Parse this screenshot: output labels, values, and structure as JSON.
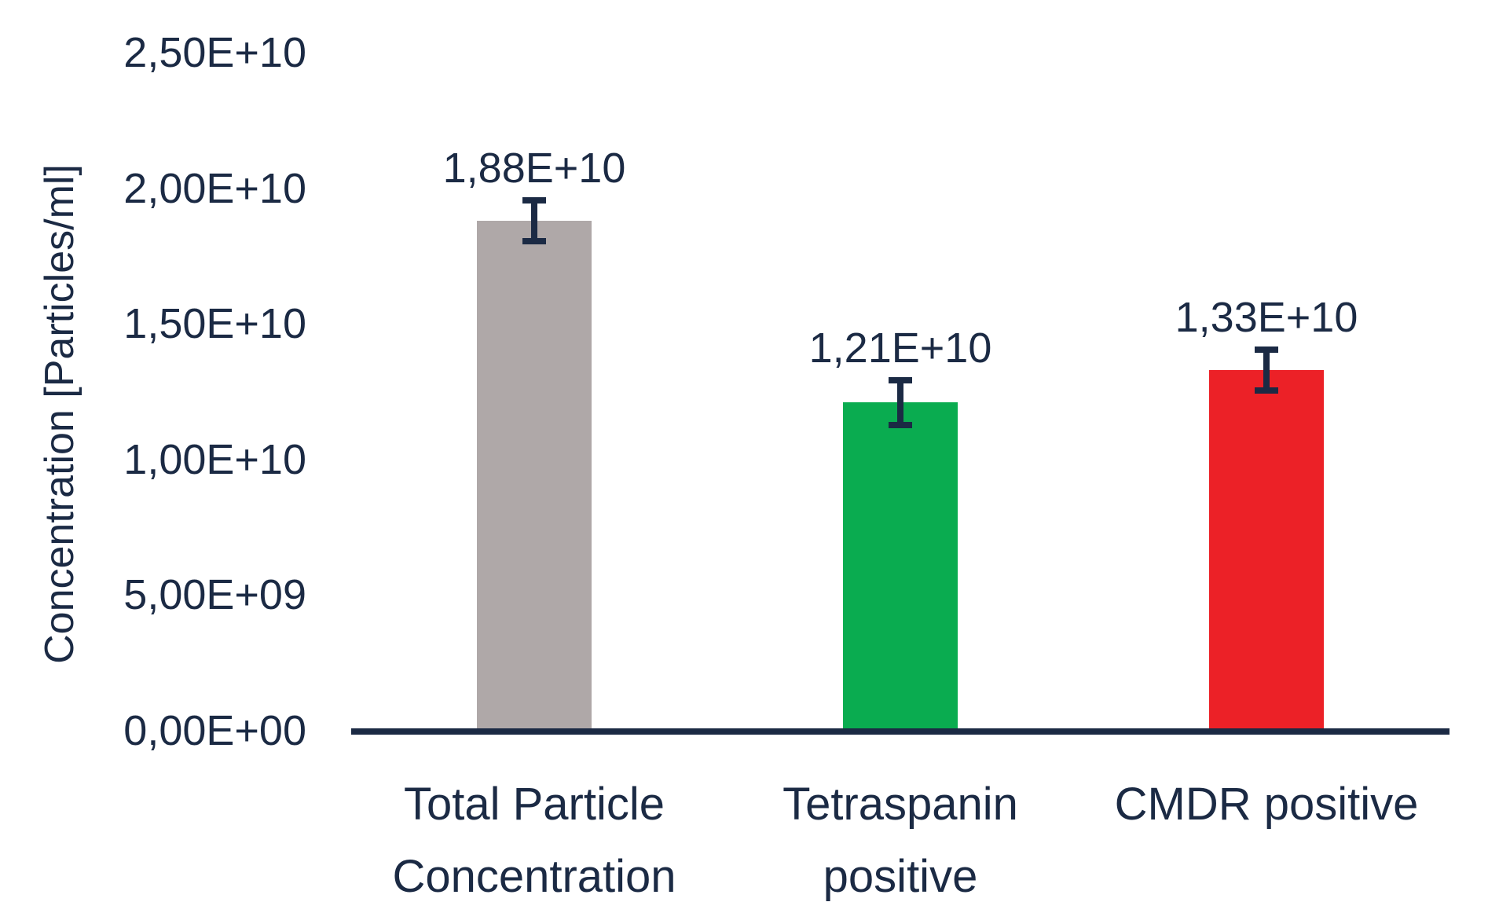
{
  "background": "#FFFFFF",
  "chart_data": {
    "type": "bar",
    "title": "",
    "xlabel": "",
    "ylabel": "Concentration [Particles/ml]",
    "categories": [
      "Total Particle\nConcentration",
      "Tetraspanin\npositive",
      "CMDR positive"
    ],
    "values": [
      18800000000,
      12100000000,
      13300000000
    ],
    "data_labels": [
      "1,88E+10",
      "1,21E+10",
      "1,33E+10"
    ],
    "errors": [
      870000000,
      940000000,
      880000000
    ],
    "bar_colors": [
      "#AFA8A8",
      "#0AAC50",
      "#EC2127"
    ],
    "ylim": [
      0,
      25000000000
    ],
    "yticks": {
      "values": [
        0,
        5000000000,
        10000000000,
        15000000000,
        20000000000,
        25000000000
      ],
      "labels": [
        "0,00E+00",
        "5,00E+09",
        "1,00E+10",
        "1,50E+10",
        "2,00E+10",
        "2,50E+10"
      ]
    },
    "grid": false,
    "legend": false,
    "axis_color": "#1B2A44",
    "text_color": "#1B2A44"
  }
}
